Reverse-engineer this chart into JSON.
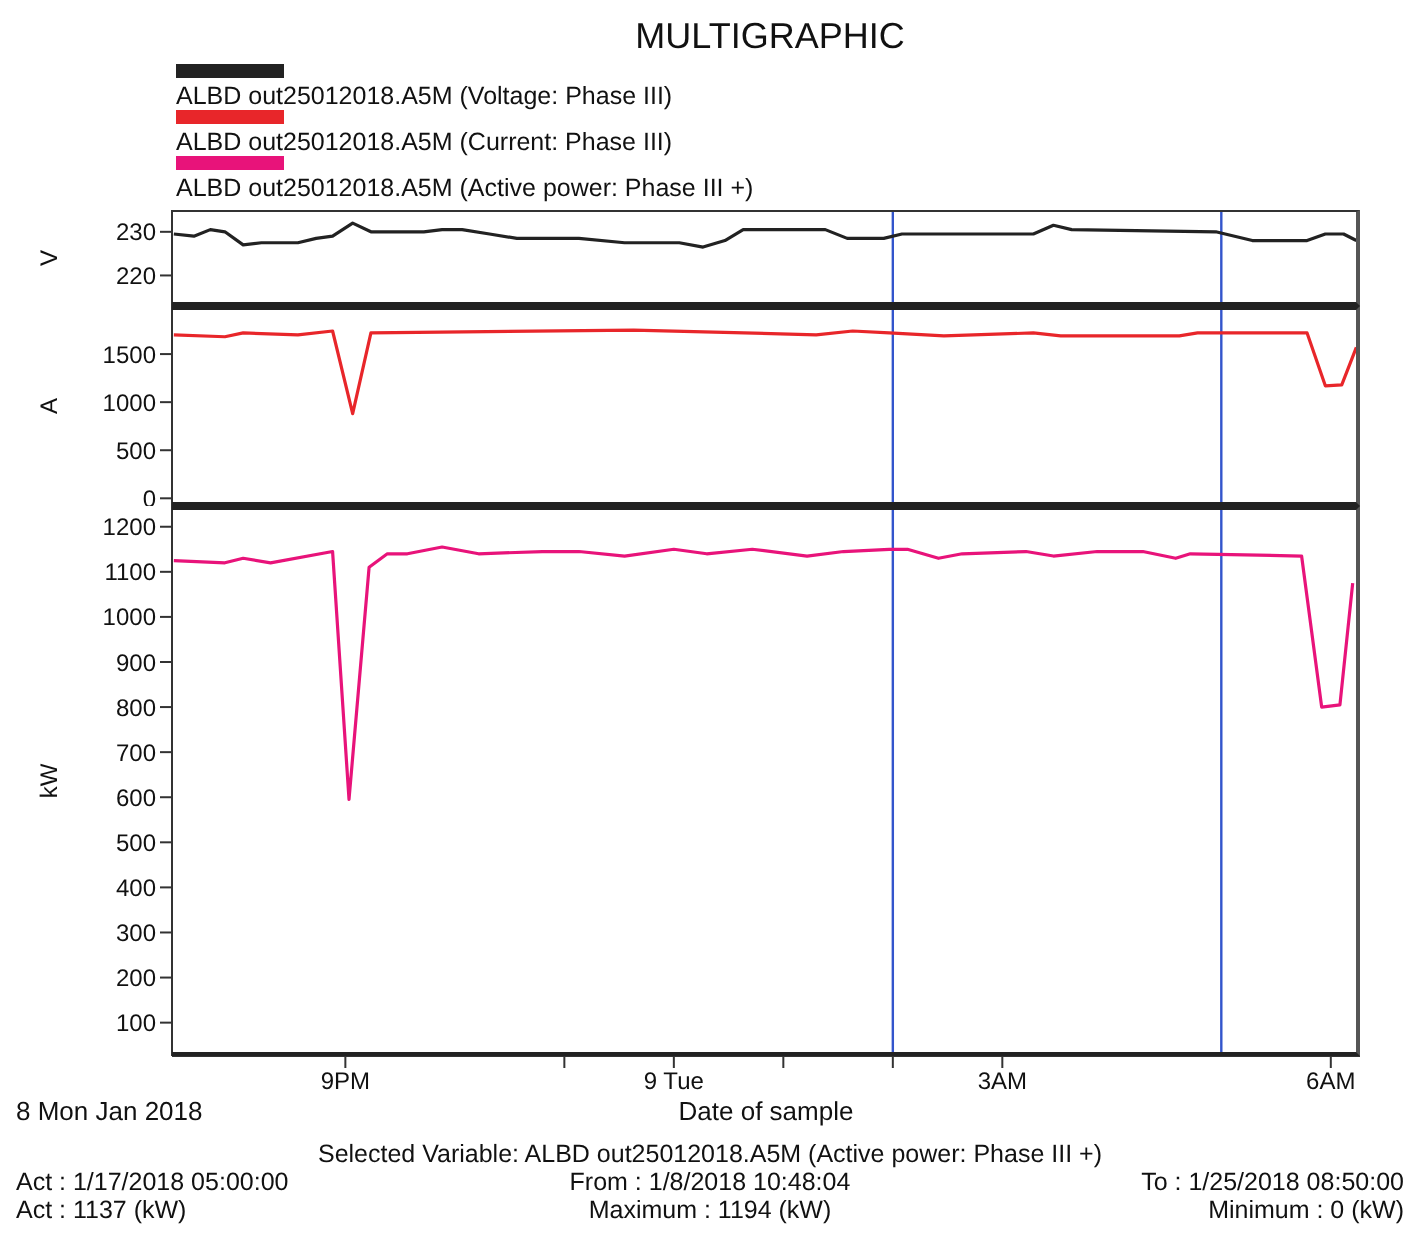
{
  "chart_data": [
    {
      "type": "line",
      "title": "MULTIGRAPHIC",
      "legend": "top",
      "ylabel": "V",
      "xlim": [
        "2018-01-08T19:25",
        "2018-01-09T06:16"
      ],
      "ylim": [
        213,
        235
      ],
      "yticks": [
        220,
        230
      ],
      "tick_labels": "y",
      "ref_lines": [
        {
          "axis": "x",
          "value": "2018-01-09T02:00",
          "color": "#3355cc"
        },
        {
          "axis": "x",
          "value": "2018-01-09T05:00",
          "color": "#3355cc"
        }
      ],
      "series": [
        {
          "name": "ALBD out25012018.A5M (Voltage: Phase III)",
          "color": "#222222",
          "x": [
            "2018-01-08T19:26",
            "2018-01-08T19:37",
            "2018-01-08T19:46",
            "2018-01-08T19:54",
            "2018-01-08T20:04",
            "2018-01-08T20:14",
            "2018-01-08T20:34",
            "2018-01-08T20:44",
            "2018-01-08T20:53",
            "2018-01-08T21:04",
            "2018-01-08T21:14",
            "2018-01-08T21:43",
            "2018-01-08T21:53",
            "2018-01-08T22:04",
            "2018-01-08T22:19",
            "2018-01-08T22:34",
            "2018-01-08T23:08",
            "2018-01-08T23:33",
            "2018-01-09T00:03",
            "2018-01-09T00:16",
            "2018-01-09T00:28",
            "2018-01-09T00:38",
            "2018-01-09T00:48",
            "2018-01-09T01:23",
            "2018-01-09T01:35",
            "2018-01-09T01:55",
            "2018-01-09T02:05",
            "2018-01-09T03:17",
            "2018-01-09T03:28",
            "2018-01-09T03:38",
            "2018-01-09T04:57",
            "2018-01-09T05:17",
            "2018-01-09T05:47",
            "2018-01-09T05:57",
            "2018-01-09T06:07",
            "2018-01-09T06:14"
          ],
          "values": [
            229.5,
            229,
            230.5,
            230,
            227,
            227.5,
            227.5,
            228.5,
            229,
            232,
            230,
            230,
            230.5,
            230.5,
            229.5,
            228.5,
            228.5,
            227.5,
            227.5,
            226.5,
            228,
            230.5,
            230.5,
            230.5,
            228.5,
            228.5,
            229.5,
            229.5,
            231.5,
            230.5,
            230,
            228,
            228,
            229.5,
            229.5,
            228
          ]
        }
      ]
    },
    {
      "type": "line",
      "legend": "top",
      "ylabel": "A",
      "xlim": [
        "2018-01-08T19:25",
        "2018-01-09T06:16"
      ],
      "ylim": [
        -80,
        2000
      ],
      "yticks": [
        0,
        500,
        1000,
        1500
      ],
      "tick_labels": "y",
      "ref_lines": [
        {
          "axis": "x",
          "value": "2018-01-09T02:00",
          "color": "#3355cc"
        },
        {
          "axis": "x",
          "value": "2018-01-09T05:00",
          "color": "#3355cc"
        }
      ],
      "series": [
        {
          "name": "ALBD out25012018.A5M (Current: Phase III)",
          "color": "#e8262a",
          "x": [
            "2018-01-08T19:26",
            "2018-01-08T19:54",
            "2018-01-08T20:04",
            "2018-01-08T20:34",
            "2018-01-08T20:53",
            "2018-01-08T21:04",
            "2018-01-08T21:14",
            "2018-01-08T23:38",
            "2018-01-09T01:18",
            "2018-01-09T01:38",
            "2018-01-09T01:58",
            "2018-01-09T02:28",
            "2018-01-09T03:17",
            "2018-01-09T03:32",
            "2018-01-09T04:37",
            "2018-01-09T04:47",
            "2018-01-09T05:47",
            "2018-01-09T05:57",
            "2018-01-09T06:06",
            "2018-01-09T06:14"
          ],
          "values": [
            1700,
            1680,
            1720,
            1700,
            1740,
            880,
            1720,
            1750,
            1700,
            1740,
            1720,
            1690,
            1720,
            1690,
            1690,
            1720,
            1720,
            1170,
            1180,
            1570
          ]
        }
      ]
    },
    {
      "type": "line",
      "legend": "top",
      "ylabel": "kW",
      "xlabel": "Date of sample",
      "xlim": [
        "2018-01-08T19:25",
        "2018-01-09T06:16"
      ],
      "ylim": [
        26,
        1246
      ],
      "yticks": [
        100,
        200,
        300,
        400,
        500,
        600,
        700,
        800,
        900,
        1000,
        1100,
        1200
      ],
      "xticks": [
        {
          "value": "2018-01-08T21:00",
          "label": "9PM"
        },
        {
          "value": "2018-01-08T23:00",
          "label": null
        },
        {
          "value": "2018-01-09T00:00",
          "label": "9 Tue"
        },
        {
          "value": "2018-01-09T01:00",
          "label": null
        },
        {
          "value": "2018-01-09T02:00",
          "label": null
        },
        {
          "value": "2018-01-09T03:00",
          "label": "3AM"
        },
        {
          "value": "2018-01-09T06:00",
          "label": "6AM"
        }
      ],
      "ref_lines": [
        {
          "axis": "x",
          "value": "2018-01-09T02:00",
          "color": "#3355cc"
        },
        {
          "axis": "x",
          "value": "2018-01-09T05:00",
          "color": "#3355cc"
        }
      ],
      "annotations": [
        "8 Mon Jan 2018",
        "Selected Variable: ALBD out25012018.A5M (Active power: Phase III +)",
        "Act : 1/17/2018 05:00:00",
        "From : 1/8/2018 10:48:04",
        "To : 1/25/2018 08:50:00",
        "Act : 1137 (kW)",
        "Maximum : 1194 (kW)",
        "Minimum : 0 (kW)"
      ],
      "series": [
        {
          "name": "ALBD out25012018.A5M (Active power: Phase III +)",
          "color": "#e8137a",
          "x": [
            "2018-01-08T19:26",
            "2018-01-08T19:54",
            "2018-01-08T20:04",
            "2018-01-08T20:19",
            "2018-01-08T20:53",
            "2018-01-08T21:02",
            "2018-01-08T21:13",
            "2018-01-08T21:23",
            "2018-01-08T21:34",
            "2018-01-08T21:53",
            "2018-01-08T22:13",
            "2018-01-08T22:48",
            "2018-01-08T23:08",
            "2018-01-08T23:33",
            "2018-01-09T00:00",
            "2018-01-09T00:18",
            "2018-01-09T00:43",
            "2018-01-09T01:13",
            "2018-01-09T01:33",
            "2018-01-09T01:58",
            "2018-01-09T02:08",
            "2018-01-09T02:25",
            "2018-01-09T02:38",
            "2018-01-09T03:13",
            "2018-01-09T03:28",
            "2018-01-09T03:52",
            "2018-01-09T04:17",
            "2018-01-09T04:35",
            "2018-01-09T04:43",
            "2018-01-09T05:44",
            "2018-01-09T05:55",
            "2018-01-09T06:05",
            "2018-01-09T06:12"
          ],
          "values": [
            1125,
            1120,
            1130,
            1120,
            1145,
            595,
            1110,
            1140,
            1140,
            1155,
            1140,
            1145,
            1145,
            1135,
            1150,
            1140,
            1150,
            1135,
            1145,
            1150,
            1150,
            1130,
            1140,
            1145,
            1135,
            1145,
            1145,
            1130,
            1140,
            1135,
            800,
            805,
            1075
          ]
        }
      ]
    }
  ]
}
